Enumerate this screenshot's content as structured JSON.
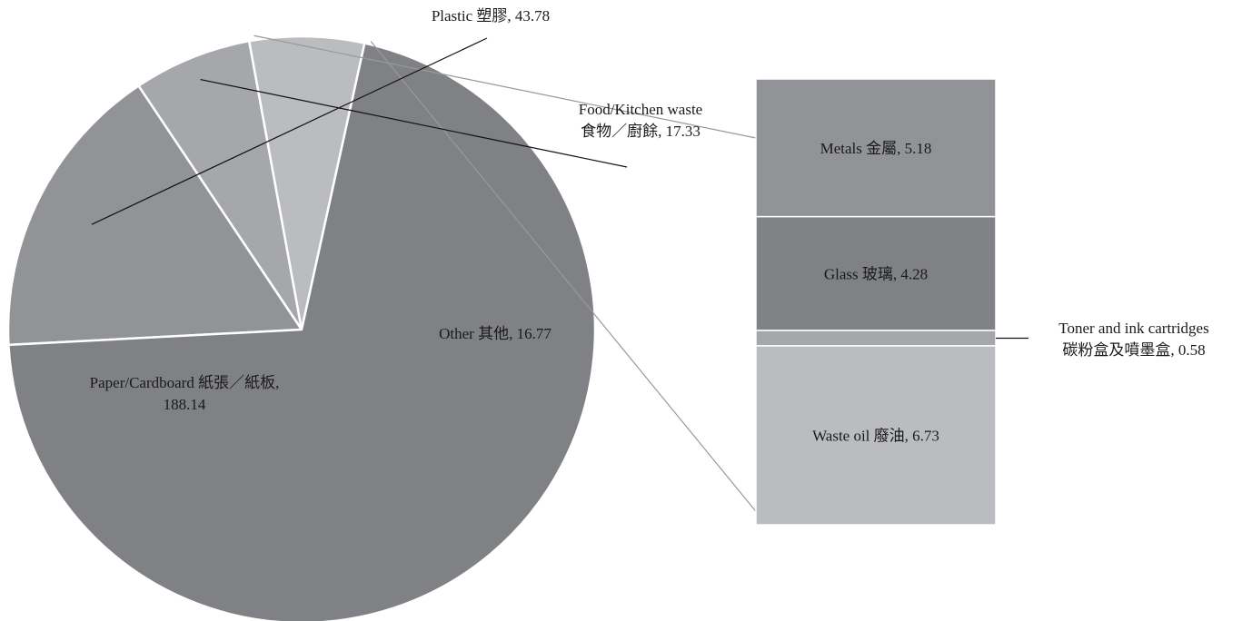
{
  "chart_data": {
    "type": "pie",
    "title": "",
    "slices": [
      {
        "name": "Plastic 塑膠",
        "value": 43.78,
        "label": [
          "Plastic 塑膠, 43.78"
        ],
        "color": "#929397"
      },
      {
        "name": "Food/Kitchen waste 食物／廚餘",
        "value": 17.33,
        "label": [
          "Food/Kitchen waste",
          "食物／廚餘, 17.33"
        ],
        "color": "#a6a7ab"
      },
      {
        "name": "Other 其他",
        "value": 16.77,
        "label": [
          "Other 其他, 16.77"
        ],
        "color": "#bbbcc0"
      },
      {
        "name": "Paper/Cardboard 紙張／紙板",
        "value": 188.14,
        "label": [
          "Paper/Cardboard 紙張／紙板,",
          "188.14"
        ],
        "color": "#808185"
      }
    ],
    "breakdown": {
      "of": "Other 其他",
      "type": "stacked-bar",
      "segments": [
        {
          "name": "Metals 金屬",
          "value": 5.18,
          "label": [
            "Metals 金屬, 5.18"
          ],
          "color": "#929397"
        },
        {
          "name": "Glass 玻璃",
          "value": 4.28,
          "label": [
            "Glass 玻璃, 4.28"
          ],
          "color": "#808185"
        },
        {
          "name": "Toner and ink cartridges 碳粉盒及噴墨盒",
          "value": 0.58,
          "label": [
            "Toner and ink cartridges",
            "碳粉盒及噴墨盒, 0.58"
          ],
          "color": "#a6a7ab"
        },
        {
          "name": "Waste oil 廢油",
          "value": 6.73,
          "label": [
            "Waste oil 廢油, 6.73"
          ],
          "color": "#bbbcc0"
        }
      ]
    }
  }
}
